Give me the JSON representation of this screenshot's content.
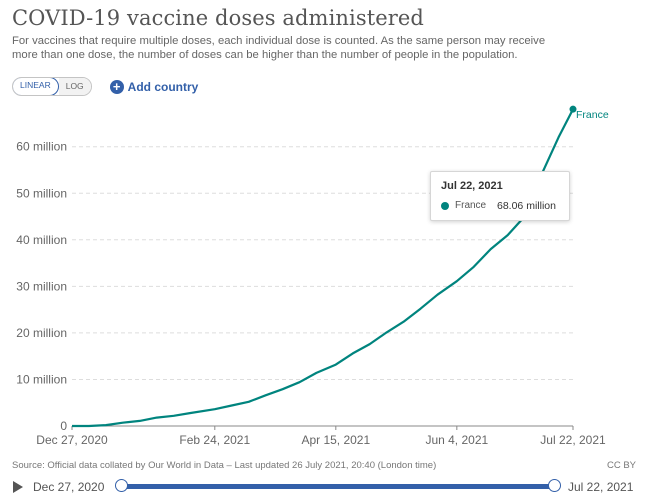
{
  "header": {
    "title": "COVID-19 vaccine doses administered",
    "subtitle": "For vaccines that require multiple doses, each individual dose is counted. As the same person may receive more than one dose, the number of doses can be higher than the number of people in the population."
  },
  "controls": {
    "linear_label": "LINEAR",
    "log_label": "LOG",
    "active_scale": "linear",
    "add_country_label": "Add country"
  },
  "colors": {
    "series": "#00847e",
    "accent": "#3360a9",
    "grid": "#dddddd"
  },
  "chart_data": {
    "type": "line",
    "title": "COVID-19 vaccine doses administered",
    "xlabel": "",
    "ylabel": "",
    "x_ticks": [
      "Dec 27, 2020",
      "Feb 24, 2021",
      "Apr 15, 2021",
      "Jun 4, 2021",
      "Jul 22, 2021"
    ],
    "y_ticks": [
      "0",
      "10 million",
      "20 million",
      "30 million",
      "40 million",
      "50 million",
      "60 million"
    ],
    "ylim": [
      0,
      68000000
    ],
    "grid": "horizontal dashed",
    "scale": "linear",
    "series": [
      {
        "name": "France",
        "points": [
          [
            "Dec 27, 2020",
            0
          ],
          [
            "Jan 3, 2021",
            0.01
          ],
          [
            "Jan 10, 2021",
            0.19
          ],
          [
            "Jan 17, 2021",
            0.7
          ],
          [
            "Jan 24, 2021",
            1.1
          ],
          [
            "Jan 31, 2021",
            1.8
          ],
          [
            "Feb 7, 2021",
            2.2
          ],
          [
            "Feb 14, 2021",
            2.8
          ],
          [
            "Feb 24, 2021",
            3.6
          ],
          [
            "Mar 3, 2021",
            4.4
          ],
          [
            "Mar 10, 2021",
            5.2
          ],
          [
            "Mar 17, 2021",
            6.6
          ],
          [
            "Mar 24, 2021",
            7.9
          ],
          [
            "Mar 31, 2021",
            9.4
          ],
          [
            "Apr 7, 2021",
            11.4
          ],
          [
            "Apr 15, 2021",
            13.2
          ],
          [
            "Apr 22, 2021",
            15.6
          ],
          [
            "Apr 29, 2021",
            17.6
          ],
          [
            "May 6, 2021",
            20.1
          ],
          [
            "May 13, 2021",
            22.4
          ],
          [
            "May 20, 2021",
            25.2
          ],
          [
            "May 27, 2021",
            28.2
          ],
          [
            "Jun 4, 2021",
            31.1
          ],
          [
            "Jun 11, 2021",
            34.2
          ],
          [
            "Jun 18, 2021",
            38.0
          ],
          [
            "Jun 25, 2021",
            41.0
          ],
          [
            "Jul 2, 2021",
            45.0
          ],
          [
            "Jul 9, 2021",
            54.0
          ],
          [
            "Jul 16, 2021",
            62.0
          ],
          [
            "Jul 22, 2021",
            68.06
          ]
        ],
        "point_units": "million"
      }
    ],
    "end_label": "France"
  },
  "tooltip": {
    "date": "Jul 22, 2021",
    "series_name": "France",
    "value": "68.06 million"
  },
  "footer": {
    "source": "Source: Official data collated by Our World in Data – Last updated 26 July 2021, 20:40 (London time)",
    "license": "CC BY"
  },
  "timeline": {
    "start_label": "Dec 27, 2020",
    "end_label": "Jul 22, 2021"
  }
}
